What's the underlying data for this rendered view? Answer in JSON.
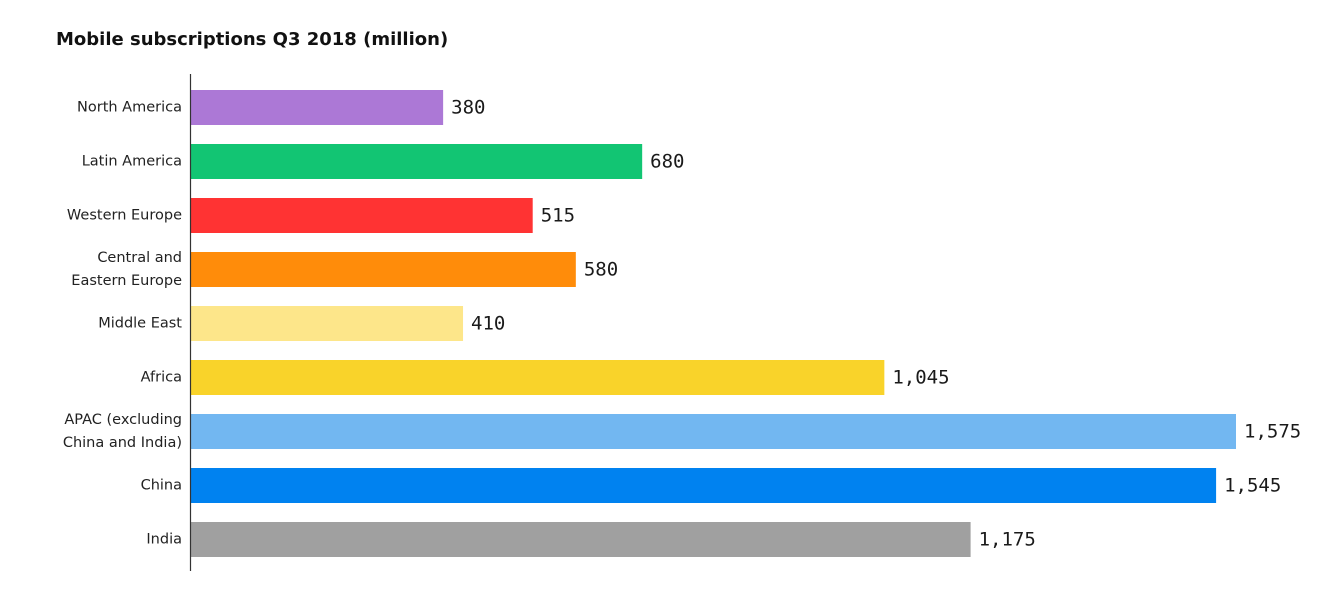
{
  "chart_data": {
    "type": "bar",
    "orientation": "horizontal",
    "title": "Mobile subscriptions Q3 2018 (million)",
    "xlabel": "",
    "ylabel": "",
    "grid": false,
    "categories": [
      "North America",
      "Latin America",
      "Western Europe",
      "Central and\nEastern Europe",
      "Middle East",
      "Africa",
      "APAC (excluding\nChina and India)",
      "China",
      "India"
    ],
    "values": [
      380,
      680,
      515,
      580,
      410,
      1045,
      1575,
      1545,
      1175
    ],
    "value_labels": [
      "380",
      "680",
      "515",
      "580",
      "410",
      "1,045",
      "1,575",
      "1,545",
      "1,175"
    ],
    "colors": [
      "#ac78d6",
      "#12c573",
      "#ff3333",
      "#ff8c0a",
      "#fde68a",
      "#f9d32a",
      "#72b7f1",
      "#0082f0",
      "#a0a0a0"
    ],
    "xlim": [
      0,
      1575
    ]
  }
}
